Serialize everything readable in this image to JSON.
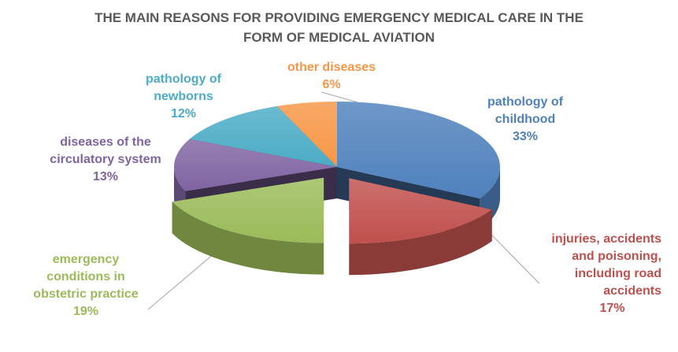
{
  "chart_data": {
    "type": "pie",
    "title_lines": [
      "THE MAIN REASONS FOR PROVIDING EMERGENCY MEDICAL CARE IN THE",
      "FORM OF MEDICAL AVIATION"
    ],
    "slices": [
      {
        "lines": [
          "pathology of",
          "childhood"
        ],
        "value": 33,
        "pct": "33%",
        "color": "#4f81bd",
        "exploded": false
      },
      {
        "lines": [
          "injuries, accidents",
          "and poisoning,",
          "including road",
          "accidents"
        ],
        "value": 17,
        "pct": "17%",
        "color": "#c0504d",
        "exploded": true
      },
      {
        "lines": [
          "emergency",
          "conditions in",
          "obstetric practice"
        ],
        "value": 19,
        "pct": "19%",
        "color": "#9bbb59",
        "exploded": true
      },
      {
        "lines": [
          "diseases of the",
          "circulatory system"
        ],
        "value": 13,
        "pct": "13%",
        "color": "#8064a2",
        "exploded": false
      },
      {
        "lines": [
          "pathology of",
          "newborns"
        ],
        "value": 12,
        "pct": "12%",
        "color": "#4bacc6",
        "exploded": false
      },
      {
        "lines": [
          "other diseases"
        ],
        "value": 6,
        "pct": "6%",
        "color": "#f79646",
        "exploded": false
      }
    ]
  }
}
